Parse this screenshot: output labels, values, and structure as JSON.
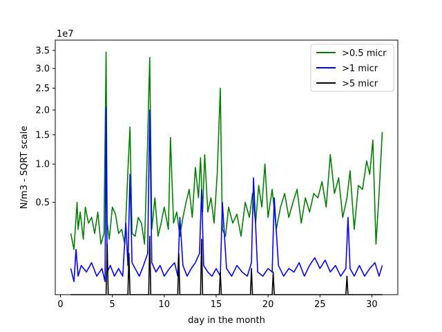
{
  "chart_data": {
    "type": "line",
    "title": "",
    "xlabel": "day in the month",
    "ylabel": "N/m3 - SQRT scale",
    "y_multiplier_label": "1e7",
    "y_scale": "sqrt",
    "xlim": [
      -0.5,
      32.5
    ],
    "ylim": [
      0,
      3.8
    ],
    "x_ticks": [
      0,
      5,
      10,
      15,
      20,
      25,
      30
    ],
    "x_tick_labels": [
      "0",
      "5",
      "10",
      "15",
      "20",
      "25",
      "30"
    ],
    "y_ticks": [
      0.5,
      1.0,
      1.5,
      2.0,
      2.5,
      3.0,
      3.5
    ],
    "y_tick_labels": [
      "0.5",
      "1.0",
      "1.5",
      "2.0",
      "2.5",
      "3.0",
      "3.5"
    ],
    "legend_position": "top-right",
    "grid": false,
    "series": [
      {
        "name": ">0.5 micr",
        "color": "#008000",
        "x": [
          1.0,
          1.3,
          1.6,
          1.7,
          1.9,
          2.2,
          2.4,
          2.7,
          3.0,
          3.3,
          3.6,
          3.9,
          4.2,
          4.4,
          4.5,
          4.7,
          5.0,
          5.3,
          5.6,
          5.9,
          6.2,
          6.5,
          6.7,
          6.9,
          7.2,
          7.5,
          7.8,
          8.1,
          8.4,
          8.6,
          8.8,
          9.1,
          9.4,
          9.7,
          10.0,
          10.4,
          10.6,
          10.9,
          11.2,
          11.5,
          11.8,
          12.1,
          12.4,
          12.7,
          13.0,
          13.3,
          13.5,
          13.7,
          13.9,
          14.2,
          14.5,
          14.8,
          15.1,
          15.4,
          15.6,
          15.9,
          16.2,
          16.6,
          17.0,
          17.4,
          17.8,
          18.2,
          18.5,
          18.8,
          19.1,
          19.4,
          19.7,
          20.0,
          20.4,
          20.8,
          21.2,
          21.6,
          22.0,
          22.4,
          22.8,
          23.2,
          23.6,
          24.0,
          24.4,
          24.8,
          25.2,
          25.6,
          26.0,
          26.4,
          26.8,
          27.2,
          27.6,
          27.9,
          28.3,
          28.7,
          29.1,
          29.5,
          29.8,
          30.1,
          30.4,
          30.7,
          31.0
        ],
        "y": [
          0.22,
          0.12,
          0.5,
          0.25,
          0.4,
          0.18,
          0.45,
          0.3,
          0.35,
          0.22,
          0.4,
          0.15,
          0.22,
          3.45,
          0.3,
          0.18,
          0.45,
          0.38,
          0.22,
          0.25,
          0.15,
          0.9,
          1.65,
          0.22,
          0.2,
          0.35,
          0.3,
          0.15,
          1.4,
          3.3,
          0.25,
          0.55,
          0.2,
          0.3,
          0.45,
          0.25,
          1.45,
          0.3,
          0.4,
          0.2,
          0.35,
          0.5,
          0.65,
          0.35,
          0.95,
          0.55,
          1.1,
          0.4,
          1.15,
          0.4,
          0.55,
          0.3,
          0.85,
          2.5,
          0.25,
          0.2,
          0.45,
          0.3,
          0.38,
          0.2,
          0.5,
          0.35,
          0.6,
          0.3,
          0.7,
          0.45,
          1.0,
          0.35,
          0.65,
          0.25,
          0.45,
          0.6,
          0.35,
          0.5,
          0.65,
          0.3,
          0.55,
          0.4,
          0.6,
          0.55,
          0.75,
          0.45,
          1.15,
          0.6,
          0.8,
          0.35,
          0.55,
          0.9,
          0.25,
          0.7,
          0.65,
          1.05,
          0.85,
          1.4,
          0.15,
          0.6,
          1.55
        ]
      },
      {
        "name": ">1 micr",
        "color": "#0000ff",
        "x": [
          1.0,
          1.3,
          1.5,
          1.7,
          2.0,
          2.5,
          3.0,
          3.5,
          4.0,
          4.3,
          4.4,
          4.5,
          4.8,
          5.2,
          5.6,
          6.0,
          6.3,
          6.5,
          6.7,
          6.9,
          7.2,
          7.6,
          8.0,
          8.4,
          8.6,
          8.8,
          9.2,
          9.6,
          10.0,
          10.5,
          11.0,
          11.3,
          11.5,
          11.8,
          12.2,
          12.6,
          13.0,
          13.4,
          13.6,
          13.8,
          14.2,
          14.6,
          15.0,
          15.4,
          15.6,
          16.0,
          16.5,
          17.0,
          17.5,
          18.0,
          18.4,
          18.6,
          19.0,
          19.5,
          20.0,
          20.4,
          20.6,
          21.0,
          21.5,
          22.0,
          22.5,
          23.0,
          23.5,
          24.0,
          24.5,
          25.0,
          25.5,
          26.0,
          26.5,
          27.0,
          27.5,
          27.7,
          27.9,
          28.3,
          28.8,
          29.3,
          29.8,
          30.3,
          30.7,
          31.0
        ],
        "y": [
          0.04,
          0.01,
          0.12,
          0.02,
          0.05,
          0.03,
          0.06,
          0.02,
          0.04,
          0.01,
          2.05,
          0.03,
          0.05,
          0.02,
          0.04,
          0.02,
          0.3,
          0.05,
          0.85,
          0.06,
          0.04,
          0.02,
          0.05,
          0.1,
          2.0,
          0.06,
          0.03,
          0.05,
          0.02,
          0.04,
          0.06,
          0.02,
          0.35,
          0.05,
          0.02,
          0.04,
          0.06,
          0.1,
          0.65,
          0.05,
          0.03,
          0.02,
          0.04,
          0.02,
          0.5,
          0.04,
          0.02,
          0.05,
          0.03,
          0.02,
          0.06,
          0.8,
          0.03,
          0.02,
          0.04,
          0.03,
          0.55,
          0.05,
          0.02,
          0.04,
          0.03,
          0.06,
          0.02,
          0.05,
          0.08,
          0.04,
          0.07,
          0.03,
          0.05,
          0.02,
          0.04,
          0.35,
          0.04,
          0.02,
          0.05,
          0.02,
          0.04,
          0.06,
          0.02,
          0.05
        ]
      },
      {
        "name": ">5 micr",
        "color": "#000000",
        "x": [
          1.0,
          2.0,
          3.0,
          4.0,
          4.4,
          4.5,
          4.6,
          5.5,
          6.5,
          6.6,
          6.7,
          7.5,
          8.5,
          8.6,
          8.7,
          9.5,
          10.5,
          11.3,
          11.4,
          11.5,
          12.5,
          13.5,
          13.6,
          13.7,
          14.5,
          15.3,
          15.4,
          15.5,
          16.5,
          17.5,
          18.3,
          18.4,
          18.5,
          19.5,
          20.4,
          20.5,
          20.6,
          21.5,
          22.5,
          23.5,
          24.5,
          25.5,
          26.5,
          27.5,
          27.6,
          27.7,
          28.5,
          29.5,
          30.5,
          31.0
        ],
        "y": [
          0.0,
          0.0,
          0.0,
          0.0,
          0.0,
          0.15,
          0.0,
          0.0,
          0.0,
          0.1,
          0.0,
          0.0,
          0.0,
          0.2,
          0.0,
          0.0,
          0.0,
          0.0,
          0.1,
          0.0,
          0.0,
          0.0,
          0.18,
          0.0,
          0.0,
          0.0,
          0.03,
          0.0,
          0.0,
          0.0,
          0.0,
          0.04,
          0.0,
          0.0,
          0.0,
          0.03,
          0.0,
          0.0,
          0.0,
          0.0,
          0.0,
          0.0,
          0.0,
          0.0,
          0.02,
          0.0,
          0.0,
          0.0,
          0.0,
          0.0
        ]
      }
    ]
  }
}
